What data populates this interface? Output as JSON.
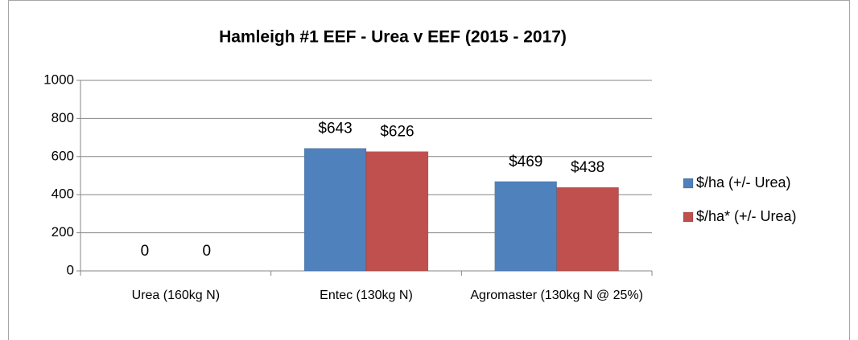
{
  "chart_data": {
    "type": "bar",
    "title": "Hamleigh #1 EEF - Urea v EEF (2015 - 2017)",
    "categories": [
      "Urea (160kg N)",
      "Entec (130kg N)",
      "Agromaster (130kg N @ 25%)"
    ],
    "series": [
      {
        "name": "$/ha (+/- Urea)",
        "color": "#4f81bd",
        "values": [
          0,
          643,
          469
        ],
        "value_labels": [
          "0",
          "$643",
          "$469"
        ]
      },
      {
        "name": "$/ha* (+/- Urea)",
        "color": "#c0504d",
        "values": [
          0,
          626,
          438
        ],
        "value_labels": [
          "0",
          "$626",
          "$438"
        ]
      }
    ],
    "ylim": [
      0,
      1000
    ],
    "yticks": [
      0,
      200,
      400,
      600,
      800,
      1000
    ],
    "grid": true,
    "legend": "right"
  }
}
